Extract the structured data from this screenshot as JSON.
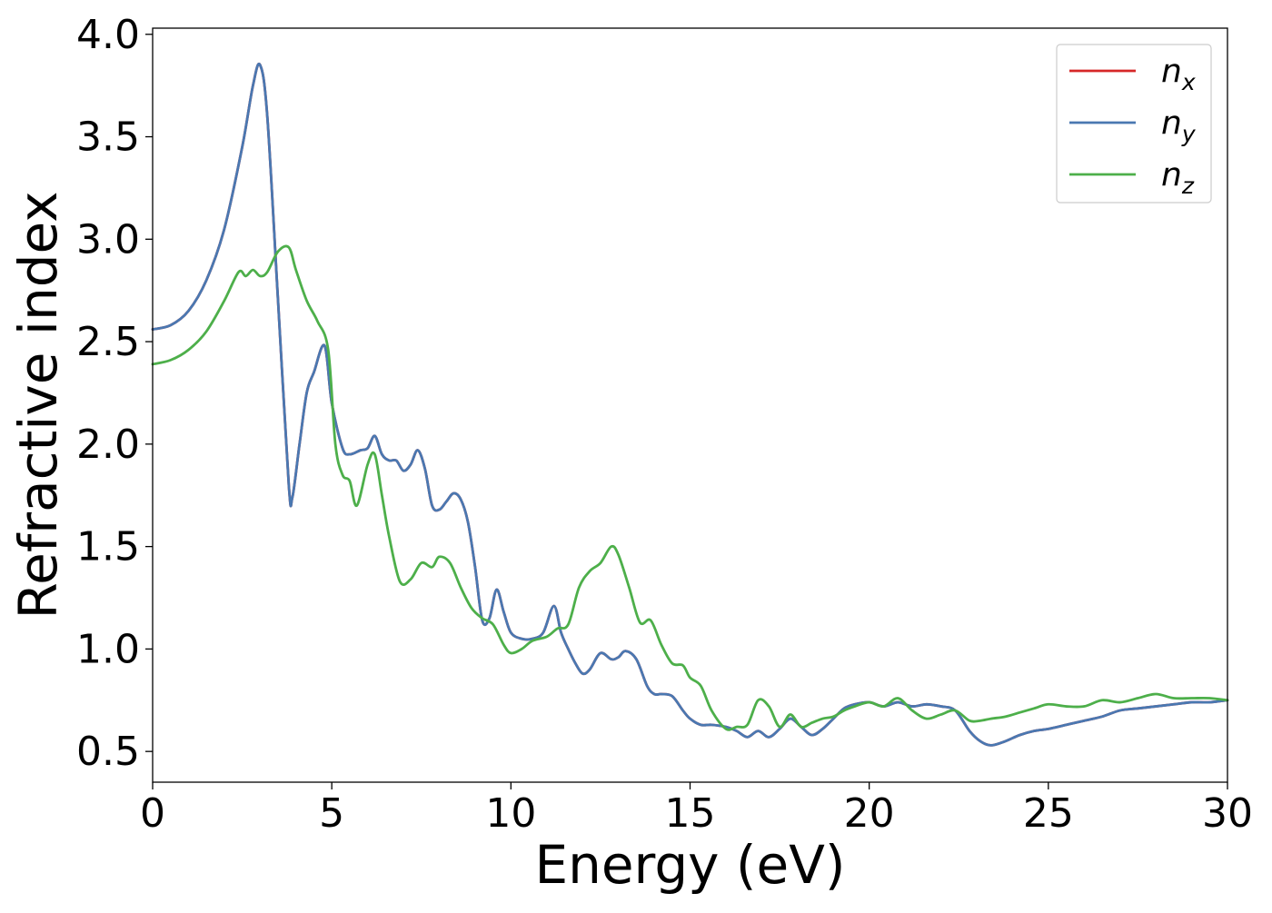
{
  "chart_data": {
    "type": "line",
    "title": "",
    "xlabel": "Energy (eV)",
    "ylabel": "Refractive index",
    "xlim": [
      0,
      30
    ],
    "ylim": [
      0.35,
      4.03
    ],
    "xticks": [
      0,
      5,
      10,
      15,
      20,
      25,
      30
    ],
    "xtick_labels": [
      "0",
      "5",
      "10",
      "15",
      "20",
      "25",
      "30"
    ],
    "yticks": [
      0.5,
      1.0,
      1.5,
      2.0,
      2.5,
      3.0,
      3.5,
      4.0
    ],
    "ytick_labels": [
      "0.5",
      "1.0",
      "1.5",
      "2.0",
      "2.5",
      "3.0",
      "3.5",
      "4.0"
    ],
    "grid": false,
    "legend_position": "top-right",
    "series": [
      {
        "name": "n",
        "subscript": "x",
        "color": "#d62728",
        "x": [
          0,
          0.5,
          1,
          1.5,
          2,
          2.5,
          2.8,
          3,
          3.2,
          3.5,
          3.8,
          3.9,
          4.1,
          4.3,
          4.5,
          4.8,
          5,
          5.3,
          5.5,
          5.8,
          6,
          6.2,
          6.4,
          6.6,
          6.8,
          7,
          7.2,
          7.4,
          7.6,
          7.8,
          8,
          8.2,
          8.4,
          8.6,
          8.8,
          9,
          9.2,
          9.4,
          9.6,
          9.8,
          10,
          10.3,
          10.6,
          10.9,
          11.2,
          11.4,
          11.6,
          11.8,
          12,
          12.2,
          12.5,
          12.8,
          13,
          13.2,
          13.5,
          13.8,
          14,
          14.2,
          14.5,
          14.8,
          15,
          15.3,
          15.6,
          16,
          16.3,
          16.6,
          16.9,
          17.2,
          17.5,
          17.8,
          18.1,
          18.4,
          18.7,
          19,
          19.3,
          19.6,
          20,
          20.4,
          20.8,
          21.2,
          21.6,
          22,
          22.4,
          22.8,
          23.1,
          23.4,
          23.8,
          24.2,
          24.6,
          25,
          25.5,
          26,
          26.5,
          27,
          27.5,
          28,
          28.5,
          29,
          29.5,
          30
        ],
        "y": [
          2.56,
          2.58,
          2.65,
          2.8,
          3.05,
          3.45,
          3.75,
          3.85,
          3.6,
          2.7,
          1.8,
          1.74,
          2.0,
          2.25,
          2.35,
          2.48,
          2.2,
          1.98,
          1.95,
          1.97,
          1.98,
          2.04,
          1.95,
          1.92,
          1.92,
          1.87,
          1.9,
          1.97,
          1.88,
          1.7,
          1.68,
          1.72,
          1.76,
          1.73,
          1.62,
          1.4,
          1.14,
          1.15,
          1.29,
          1.18,
          1.08,
          1.05,
          1.05,
          1.08,
          1.21,
          1.08,
          1.0,
          0.93,
          0.88,
          0.9,
          0.98,
          0.95,
          0.96,
          0.99,
          0.95,
          0.82,
          0.78,
          0.78,
          0.77,
          0.7,
          0.66,
          0.63,
          0.63,
          0.62,
          0.6,
          0.57,
          0.6,
          0.57,
          0.61,
          0.66,
          0.62,
          0.58,
          0.61,
          0.66,
          0.71,
          0.73,
          0.74,
          0.72,
          0.74,
          0.72,
          0.73,
          0.72,
          0.7,
          0.6,
          0.55,
          0.53,
          0.55,
          0.58,
          0.6,
          0.61,
          0.63,
          0.65,
          0.67,
          0.7,
          0.71,
          0.72,
          0.73,
          0.74,
          0.74,
          0.75
        ]
      },
      {
        "name": "n",
        "subscript": "y",
        "color": "#4a78b1",
        "x": [
          0,
          0.5,
          1,
          1.5,
          2,
          2.5,
          2.8,
          3,
          3.2,
          3.5,
          3.8,
          3.9,
          4.1,
          4.3,
          4.5,
          4.8,
          5,
          5.3,
          5.5,
          5.8,
          6,
          6.2,
          6.4,
          6.6,
          6.8,
          7,
          7.2,
          7.4,
          7.6,
          7.8,
          8,
          8.2,
          8.4,
          8.6,
          8.8,
          9,
          9.2,
          9.4,
          9.6,
          9.8,
          10,
          10.3,
          10.6,
          10.9,
          11.2,
          11.4,
          11.6,
          11.8,
          12,
          12.2,
          12.5,
          12.8,
          13,
          13.2,
          13.5,
          13.8,
          14,
          14.2,
          14.5,
          14.8,
          15,
          15.3,
          15.6,
          16,
          16.3,
          16.6,
          16.9,
          17.2,
          17.5,
          17.8,
          18.1,
          18.4,
          18.7,
          19,
          19.3,
          19.6,
          20,
          20.4,
          20.8,
          21.2,
          21.6,
          22,
          22.4,
          22.8,
          23.1,
          23.4,
          23.8,
          24.2,
          24.6,
          25,
          25.5,
          26,
          26.5,
          27,
          27.5,
          28,
          28.5,
          29,
          29.5,
          30
        ],
        "y": [
          2.56,
          2.58,
          2.65,
          2.8,
          3.05,
          3.45,
          3.75,
          3.85,
          3.6,
          2.7,
          1.8,
          1.74,
          2.0,
          2.25,
          2.35,
          2.48,
          2.2,
          1.98,
          1.95,
          1.97,
          1.98,
          2.04,
          1.95,
          1.92,
          1.92,
          1.87,
          1.9,
          1.97,
          1.88,
          1.7,
          1.68,
          1.72,
          1.76,
          1.73,
          1.62,
          1.4,
          1.14,
          1.15,
          1.29,
          1.18,
          1.08,
          1.05,
          1.05,
          1.08,
          1.21,
          1.08,
          1.0,
          0.93,
          0.88,
          0.9,
          0.98,
          0.95,
          0.96,
          0.99,
          0.95,
          0.82,
          0.78,
          0.78,
          0.77,
          0.7,
          0.66,
          0.63,
          0.63,
          0.62,
          0.6,
          0.57,
          0.6,
          0.57,
          0.61,
          0.66,
          0.62,
          0.58,
          0.61,
          0.66,
          0.71,
          0.73,
          0.74,
          0.72,
          0.74,
          0.72,
          0.73,
          0.72,
          0.7,
          0.6,
          0.55,
          0.53,
          0.55,
          0.58,
          0.6,
          0.61,
          0.63,
          0.65,
          0.67,
          0.7,
          0.71,
          0.72,
          0.73,
          0.74,
          0.74,
          0.75
        ]
      },
      {
        "name": "n",
        "subscript": "z",
        "color": "#4daf4a",
        "x": [
          0,
          0.5,
          1,
          1.5,
          2,
          2.4,
          2.6,
          2.8,
          3,
          3.2,
          3.5,
          3.8,
          4,
          4.3,
          4.6,
          4.9,
          5.1,
          5.3,
          5.5,
          5.7,
          6,
          6.2,
          6.4,
          6.6,
          6.9,
          7.2,
          7.5,
          7.8,
          8,
          8.3,
          8.6,
          8.9,
          9.2,
          9.5,
          9.8,
          10,
          10.3,
          10.6,
          11,
          11.3,
          11.6,
          11.9,
          12.2,
          12.5,
          12.8,
          13,
          13.3,
          13.6,
          13.9,
          14.2,
          14.5,
          14.8,
          15,
          15.3,
          15.6,
          16,
          16.3,
          16.6,
          16.9,
          17.2,
          17.5,
          17.8,
          18.1,
          18.4,
          18.7,
          19,
          19.3,
          19.6,
          20,
          20.4,
          20.8,
          21.2,
          21.6,
          22,
          22.4,
          22.8,
          23.1,
          23.4,
          23.8,
          24.2,
          24.6,
          25,
          25.5,
          26,
          26.5,
          27,
          27.5,
          28,
          28.5,
          29,
          29.5,
          30
        ],
        "y": [
          2.39,
          2.41,
          2.46,
          2.55,
          2.7,
          2.84,
          2.82,
          2.85,
          2.82,
          2.84,
          2.94,
          2.96,
          2.85,
          2.7,
          2.6,
          2.46,
          2.0,
          1.85,
          1.82,
          1.7,
          1.9,
          1.95,
          1.75,
          1.55,
          1.33,
          1.34,
          1.42,
          1.4,
          1.45,
          1.42,
          1.3,
          1.2,
          1.15,
          1.12,
          1.02,
          0.98,
          1.0,
          1.04,
          1.06,
          1.1,
          1.12,
          1.3,
          1.38,
          1.42,
          1.5,
          1.46,
          1.3,
          1.13,
          1.14,
          1.02,
          0.93,
          0.92,
          0.86,
          0.82,
          0.7,
          0.61,
          0.62,
          0.63,
          0.75,
          0.72,
          0.62,
          0.68,
          0.62,
          0.64,
          0.66,
          0.67,
          0.7,
          0.72,
          0.74,
          0.72,
          0.76,
          0.7,
          0.66,
          0.68,
          0.7,
          0.65,
          0.65,
          0.66,
          0.67,
          0.69,
          0.71,
          0.73,
          0.72,
          0.72,
          0.75,
          0.74,
          0.76,
          0.78,
          0.76,
          0.76,
          0.76,
          0.75
        ]
      }
    ]
  }
}
